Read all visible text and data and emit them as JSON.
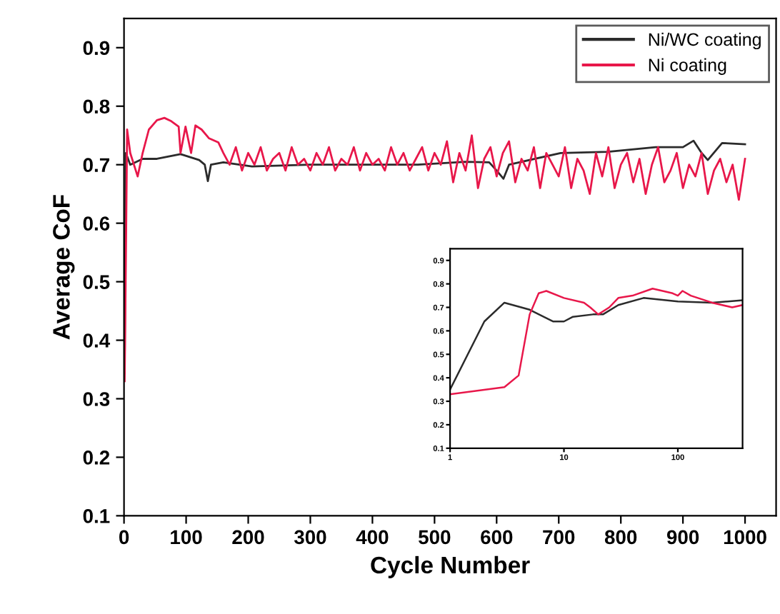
{
  "chart_data": [
    {
      "type": "line",
      "xlabel": "Cycle Number",
      "ylabel": "Average CoF",
      "xlim": [
        0,
        1050
      ],
      "ylim": [
        0.1,
        0.95
      ],
      "xticks": [
        0,
        100,
        200,
        300,
        400,
        500,
        600,
        700,
        800,
        900,
        1000
      ],
      "yticks": [
        0.1,
        0.2,
        0.3,
        0.4,
        0.5,
        0.6,
        0.7,
        0.8,
        0.9
      ],
      "grid": false,
      "legend": "top right",
      "marker": "none",
      "line_style": "solid",
      "series": [
        {
          "name": "Ni/WC coating",
          "color": "#2b2b2b",
          "x": [
            1,
            3,
            10,
            30,
            53,
            91,
            121,
            130,
            135,
            140,
            160,
            206,
            300,
            400,
            473,
            550,
            588,
            600,
            611,
            620,
            703,
            779,
            856,
            900,
            917,
            930,
            940,
            963,
            1000
          ],
          "values": [
            0.35,
            0.72,
            0.7,
            0.71,
            0.71,
            0.718,
            0.708,
            0.7,
            0.672,
            0.7,
            0.704,
            0.697,
            0.7,
            0.7,
            0.7,
            0.705,
            0.704,
            0.69,
            0.676,
            0.7,
            0.72,
            0.722,
            0.73,
            0.73,
            0.741,
            0.72,
            0.708,
            0.737,
            0.735
          ]
        },
        {
          "name": "Ni coating",
          "color": "#e8174a",
          "x": [
            1,
            5,
            10,
            22,
            30,
            40,
            53,
            65,
            75,
            88,
            91,
            99,
            108,
            115,
            125,
            137,
            152,
            160,
            170,
            180,
            190,
            200,
            210,
            220,
            230,
            240,
            250,
            260,
            270,
            280,
            290,
            300,
            310,
            320,
            330,
            340,
            350,
            360,
            370,
            380,
            390,
            400,
            410,
            420,
            430,
            440,
            450,
            460,
            470,
            480,
            490,
            500,
            510,
            520,
            530,
            540,
            550,
            560,
            570,
            580,
            590,
            600,
            610,
            620,
            630,
            640,
            650,
            660,
            670,
            680,
            690,
            700,
            710,
            720,
            730,
            740,
            750,
            760,
            770,
            780,
            790,
            800,
            810,
            820,
            830,
            840,
            850,
            860,
            870,
            880,
            890,
            900,
            910,
            920,
            930,
            940,
            950,
            960,
            970,
            980,
            990,
            1000
          ],
          "values": [
            0.33,
            0.76,
            0.72,
            0.68,
            0.72,
            0.76,
            0.776,
            0.78,
            0.775,
            0.765,
            0.72,
            0.765,
            0.72,
            0.767,
            0.76,
            0.745,
            0.738,
            0.72,
            0.7,
            0.73,
            0.69,
            0.72,
            0.7,
            0.73,
            0.69,
            0.71,
            0.72,
            0.69,
            0.73,
            0.7,
            0.71,
            0.69,
            0.72,
            0.7,
            0.73,
            0.69,
            0.71,
            0.7,
            0.73,
            0.69,
            0.72,
            0.7,
            0.71,
            0.69,
            0.73,
            0.7,
            0.72,
            0.69,
            0.71,
            0.73,
            0.69,
            0.72,
            0.7,
            0.74,
            0.67,
            0.72,
            0.69,
            0.75,
            0.66,
            0.71,
            0.73,
            0.68,
            0.72,
            0.74,
            0.67,
            0.71,
            0.69,
            0.73,
            0.66,
            0.72,
            0.7,
            0.68,
            0.73,
            0.66,
            0.71,
            0.69,
            0.65,
            0.72,
            0.68,
            0.73,
            0.66,
            0.7,
            0.72,
            0.67,
            0.71,
            0.65,
            0.7,
            0.73,
            0.67,
            0.69,
            0.72,
            0.66,
            0.7,
            0.68,
            0.72,
            0.65,
            0.69,
            0.71,
            0.67,
            0.7,
            0.64,
            0.71
          ]
        }
      ]
    },
    {
      "type": "line",
      "log": "x",
      "xlim": [
        1,
        370
      ],
      "ylim": [
        0.1,
        0.95
      ],
      "xticks": [
        1,
        10,
        100
      ],
      "yticks": [
        0.1,
        0.2,
        0.3,
        0.4,
        0.5,
        0.6,
        0.7,
        0.8,
        0.9
      ],
      "grid": false,
      "marker": "none",
      "line_style": "solid",
      "series": [
        {
          "color": "#2b2b2b",
          "x": [
            1,
            2,
            3,
            5,
            8,
            10,
            12,
            18,
            22,
            30,
            50,
            100,
            200,
            370
          ],
          "values": [
            0.35,
            0.64,
            0.72,
            0.69,
            0.64,
            0.64,
            0.66,
            0.67,
            0.67,
            0.71,
            0.74,
            0.725,
            0.72,
            0.73
          ]
        },
        {
          "color": "#e8174a",
          "x": [
            1,
            3,
            4,
            5,
            6,
            7,
            10,
            15,
            17,
            20,
            25,
            30,
            40,
            60,
            90,
            100,
            110,
            130,
            200,
            300,
            370
          ],
          "values": [
            0.33,
            0.36,
            0.41,
            0.67,
            0.76,
            0.77,
            0.74,
            0.72,
            0.7,
            0.67,
            0.7,
            0.74,
            0.75,
            0.78,
            0.76,
            0.75,
            0.77,
            0.75,
            0.72,
            0.7,
            0.71
          ]
        }
      ]
    }
  ]
}
